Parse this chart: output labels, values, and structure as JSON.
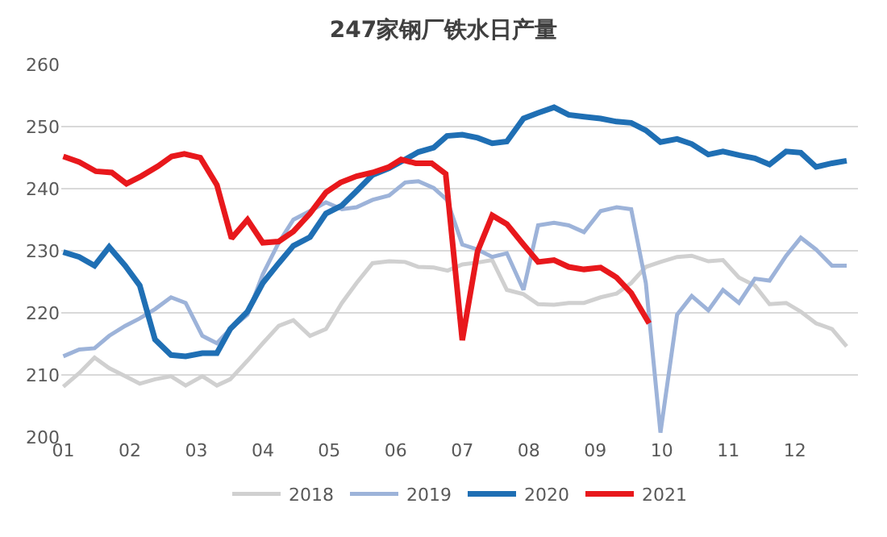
{
  "chart_data": {
    "type": "line",
    "title": "247家钢厂铁水日产量",
    "xlim": [
      0.97,
      12.95
    ],
    "xticks": [
      {
        "value": 1,
        "label": "01"
      },
      {
        "value": 2,
        "label": "02"
      },
      {
        "value": 3,
        "label": "03"
      },
      {
        "value": 4,
        "label": "04"
      },
      {
        "value": 5,
        "label": "05"
      },
      {
        "value": 6,
        "label": "06"
      },
      {
        "value": 7,
        "label": "07"
      },
      {
        "value": 8,
        "label": "08"
      },
      {
        "value": 9,
        "label": "09"
      },
      {
        "value": 10,
        "label": "10"
      },
      {
        "value": 11,
        "label": "11"
      },
      {
        "value": 12,
        "label": "12"
      }
    ],
    "ylim": [
      200,
      260
    ],
    "yticks": [
      200,
      210,
      220,
      230,
      240,
      250,
      260
    ],
    "grid": "y",
    "legend": "bottom",
    "marker": "none",
    "line_style": "solid",
    "series": [
      {
        "name": "2018",
        "color": "#d0d0d0",
        "x": [
          1.0,
          1.24,
          1.47,
          1.69,
          1.93,
          2.15,
          2.38,
          2.62,
          2.84,
          3.09,
          3.31,
          3.51,
          3.77,
          4.0,
          4.24,
          4.46,
          4.71,
          4.95,
          5.19,
          5.41,
          5.65,
          5.9,
          6.14,
          6.34,
          6.57,
          6.78,
          7.0,
          7.23,
          7.45,
          7.67,
          7.92,
          8.14,
          8.38,
          8.6,
          8.83,
          9.08,
          9.32,
          9.54,
          9.76,
          9.98,
          10.23,
          10.45,
          10.7,
          10.92,
          11.16,
          11.4,
          11.62,
          11.87,
          12.09,
          12.32,
          12.56,
          12.78
        ],
        "values": [
          208.1,
          210.3,
          212.8,
          211.1,
          209.8,
          208.6,
          209.3,
          209.8,
          208.3,
          209.8,
          208.3,
          209.3,
          212.3,
          215.1,
          217.9,
          218.8,
          216.3,
          217.4,
          221.6,
          224.8,
          228.0,
          228.3,
          228.2,
          227.4,
          227.3,
          226.8,
          227.8,
          228.1,
          228.5,
          223.7,
          223.0,
          221.4,
          221.3,
          221.6,
          221.6,
          222.5,
          223.1,
          224.8,
          227.4,
          228.2,
          229.0,
          229.2,
          228.3,
          228.5,
          225.7,
          224.4,
          221.4,
          221.6,
          220.2,
          218.3,
          217.4,
          214.6
        ]
      },
      {
        "name": "2019",
        "color": "#9db3d9",
        "x": [
          1.0,
          1.24,
          1.47,
          1.69,
          1.93,
          2.15,
          2.38,
          2.62,
          2.84,
          3.09,
          3.31,
          3.51,
          3.77,
          4.0,
          4.24,
          4.46,
          4.71,
          4.95,
          5.19,
          5.41,
          5.65,
          5.9,
          6.14,
          6.34,
          6.57,
          6.77,
          7.0,
          7.23,
          7.45,
          7.67,
          7.92,
          8.14,
          8.38,
          8.6,
          8.83,
          9.08,
          9.32,
          9.54,
          9.76,
          9.98,
          10.23,
          10.45,
          10.7,
          10.92,
          11.16,
          11.4,
          11.62,
          11.87,
          12.09,
          12.32,
          12.56,
          12.78
        ],
        "values": [
          213.0,
          214.1,
          214.3,
          216.3,
          217.9,
          219.1,
          220.6,
          222.5,
          221.6,
          216.3,
          215.1,
          217.4,
          219.7,
          226.2,
          231.3,
          235.0,
          236.4,
          237.8,
          236.7,
          237.0,
          238.2,
          238.9,
          241.0,
          241.2,
          240.1,
          238.2,
          231.0,
          230.2,
          229.0,
          229.6,
          223.7,
          234.1,
          234.5,
          234.1,
          233.0,
          236.4,
          237.0,
          236.7,
          224.8,
          200.7,
          219.7,
          222.7,
          220.4,
          223.7,
          221.6,
          225.5,
          225.2,
          229.2,
          232.1,
          230.2,
          227.6,
          227.6
        ]
      },
      {
        "name": "2020",
        "color": "#1f6fb4",
        "x": [
          1.0,
          1.24,
          1.47,
          1.69,
          1.93,
          2.15,
          2.38,
          2.62,
          2.84,
          3.09,
          3.31,
          3.51,
          3.77,
          4.0,
          4.24,
          4.46,
          4.71,
          4.95,
          5.19,
          5.41,
          5.65,
          5.9,
          6.14,
          6.34,
          6.57,
          6.77,
          7.0,
          7.23,
          7.45,
          7.67,
          7.92,
          8.14,
          8.38,
          8.6,
          8.83,
          9.08,
          9.32,
          9.54,
          9.76,
          9.98,
          10.23,
          10.45,
          10.7,
          10.92,
          11.16,
          11.4,
          11.62,
          11.87,
          12.09,
          12.32,
          12.56,
          12.78
        ],
        "values": [
          229.8,
          229.0,
          227.6,
          230.6,
          227.6,
          224.4,
          215.7,
          213.2,
          213.0,
          213.5,
          213.5,
          217.4,
          220.2,
          224.8,
          228.0,
          230.8,
          232.2,
          236.0,
          237.3,
          239.6,
          242.2,
          243.3,
          244.7,
          245.9,
          246.6,
          248.5,
          248.7,
          248.2,
          247.3,
          247.6,
          251.3,
          252.2,
          253.1,
          251.9,
          251.6,
          251.3,
          250.8,
          250.6,
          249.4,
          247.5,
          248.0,
          247.2,
          245.5,
          246.0,
          245.4,
          244.9,
          243.9,
          246.0,
          245.8,
          243.5,
          244.1,
          244.5
        ]
      },
      {
        "name": "2021",
        "color": "#e8181c",
        "x": [
          1.0,
          1.24,
          1.49,
          1.73,
          1.95,
          2.17,
          2.42,
          2.63,
          2.82,
          3.06,
          3.31,
          3.53,
          3.77,
          4.0,
          4.24,
          4.46,
          4.71,
          4.95,
          5.17,
          5.41,
          5.65,
          5.9,
          6.08,
          6.3,
          6.54,
          6.75,
          7.0,
          7.23,
          7.45,
          7.67,
          7.92,
          8.14,
          8.38,
          8.6,
          8.83,
          9.08,
          9.32,
          9.54,
          9.81
        ],
        "values": [
          245.2,
          244.3,
          242.8,
          242.6,
          240.8,
          242.0,
          243.6,
          245.2,
          245.6,
          245.0,
          240.6,
          232.0,
          235.0,
          231.3,
          231.5,
          233.1,
          236.0,
          239.4,
          241.0,
          242.0,
          242.6,
          243.5,
          244.7,
          244.1,
          244.1,
          242.4,
          215.6,
          229.9,
          235.7,
          234.3,
          231.0,
          228.2,
          228.5,
          227.4,
          227.0,
          227.3,
          225.7,
          223.2,
          218.3
        ]
      }
    ]
  }
}
